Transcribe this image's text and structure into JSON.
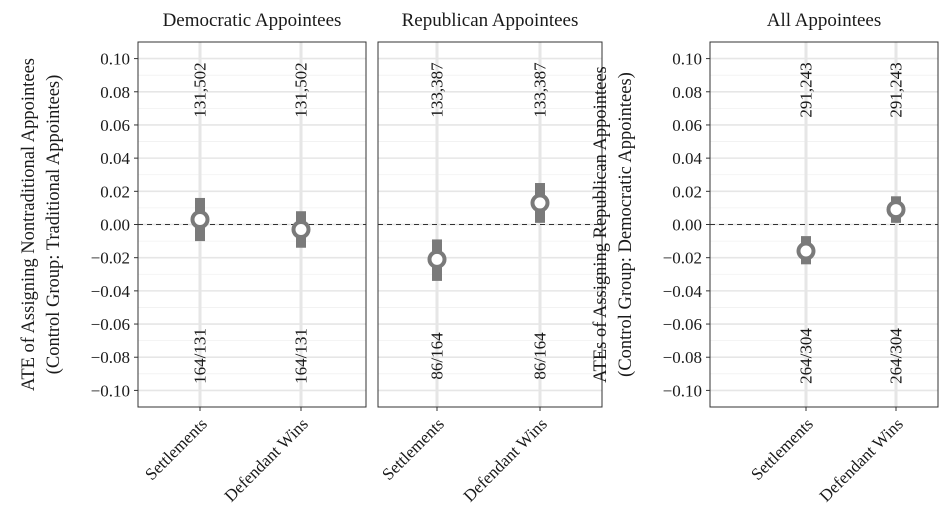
{
  "chart_data": [
    {
      "type": "pointrange",
      "title": "Democratic Appointees",
      "ylabel_lines": [
        "ATE of Assigning Nontraditional Appointees",
        "(Control Group: Traditional Appointees)"
      ],
      "categories": [
        "Settlements",
        "Defendant Wins"
      ],
      "ylim": [
        -0.11,
        0.11
      ],
      "yticks": [
        "0.10",
        "0.08",
        "0.06",
        "0.04",
        "0.02",
        "0.00",
        "−0.02",
        "−0.04",
        "−0.06",
        "−0.08",
        "−0.10"
      ],
      "ytick_values": [
        0.1,
        0.08,
        0.06,
        0.04,
        0.02,
        0.0,
        -0.02,
        -0.04,
        -0.06,
        -0.08,
        -0.1
      ],
      "reference_line": 0,
      "points": [
        {
          "category": "Settlements",
          "estimate": 0.003,
          "ci_low": -0.01,
          "ci_high": 0.016,
          "top_label": "131,502",
          "bottom_label": "164/131"
        },
        {
          "category": "Defendant Wins",
          "estimate": -0.003,
          "ci_low": -0.014,
          "ci_high": 0.008,
          "top_label": "131,502",
          "bottom_label": "164/131"
        }
      ],
      "grid": true
    },
    {
      "type": "pointrange",
      "title": "Republican Appointees",
      "categories": [
        "Settlements",
        "Defendant Wins"
      ],
      "ylim": [
        -0.11,
        0.11
      ],
      "reference_line": 0,
      "points": [
        {
          "category": "Settlements",
          "estimate": -0.021,
          "ci_low": -0.034,
          "ci_high": -0.009,
          "top_label": "133,387",
          "bottom_label": "86/164"
        },
        {
          "category": "Defendant Wins",
          "estimate": 0.013,
          "ci_low": 0.001,
          "ci_high": 0.025,
          "top_label": "133,387",
          "bottom_label": "86/164"
        }
      ],
      "grid": true
    },
    {
      "type": "pointrange",
      "title": "All Appointees",
      "ylabel_lines": [
        "ATEs of Assigning Republican Appointees",
        "(Control Group: Democratic Appointees)"
      ],
      "categories": [
        "Settlements",
        "Defendant Wins"
      ],
      "ylim": [
        -0.11,
        0.11
      ],
      "yticks": [
        "0.10",
        "0.08",
        "0.06",
        "0.04",
        "0.02",
        "0.00",
        "−0.02",
        "−0.04",
        "−0.06",
        "−0.08",
        "−0.10"
      ],
      "ytick_values": [
        0.1,
        0.08,
        0.06,
        0.04,
        0.02,
        0.0,
        -0.02,
        -0.04,
        -0.06,
        -0.08,
        -0.1
      ],
      "reference_line": 0,
      "points": [
        {
          "category": "Settlements",
          "estimate": -0.016,
          "ci_low": -0.024,
          "ci_high": -0.007,
          "top_label": "291,243",
          "bottom_label": "264/304"
        },
        {
          "category": "Defendant Wins",
          "estimate": 0.009,
          "ci_low": 0.001,
          "ci_high": 0.017,
          "top_label": "291,243",
          "bottom_label": "264/304"
        }
      ],
      "grid": true
    }
  ],
  "colors": {
    "estimate": "#7a7a7a",
    "point_fill": "#ffffff",
    "grid": "#e6e6e6",
    "panel_border": "#333333",
    "reference": "#333333",
    "text": "#1a1a1a"
  }
}
